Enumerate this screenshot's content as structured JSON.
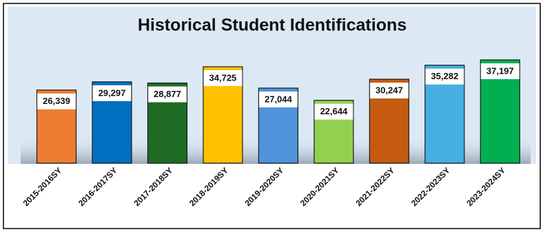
{
  "chart_data": {
    "type": "bar",
    "title": "Historical Student Identifications",
    "categories": [
      "2015-2016SY",
      "2016-2017SY",
      "2017-2018SY",
      "2018-2019SY",
      "2019-2020SY",
      "2020-2021SY",
      "2021-2022SY",
      "2022-2023SY",
      "2023-2024SY"
    ],
    "values": [
      26339,
      29297,
      28877,
      34725,
      27044,
      22644,
      30247,
      35282,
      37197
    ],
    "value_labels": [
      "26,339",
      "29,297",
      "28,877",
      "34,725",
      "27,044",
      "22,644",
      "30,247",
      "35,282",
      "37,197"
    ],
    "colors": [
      "#ed7d31",
      "#0070c0",
      "#1e6b24",
      "#ffc000",
      "#4f93db",
      "#92d050",
      "#c55a11",
      "#46afe2",
      "#00b050"
    ]
  }
}
